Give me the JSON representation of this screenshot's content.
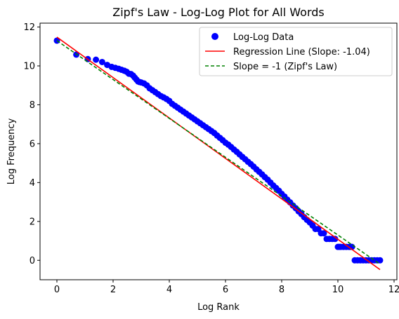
{
  "chart_data": {
    "type": "scatter",
    "title": "Zipf's Law - Log-Log Plot for All Words",
    "xlabel": "Log Rank",
    "ylabel": "Log Frequency",
    "xlim": [
      -0.6,
      12.1
    ],
    "ylim": [
      -1.0,
      12.2
    ],
    "xticks": [
      0,
      2,
      4,
      6,
      8,
      10,
      12
    ],
    "yticks": [
      0,
      2,
      4,
      6,
      8,
      10,
      12
    ],
    "grid": false,
    "legend_position": "top-right",
    "series": [
      {
        "name": "Log-Log Data",
        "kind": "scatter",
        "color": "#0000ff",
        "points": [
          [
            0,
            11.3
          ],
          [
            0.69,
            10.58
          ],
          [
            1.1,
            10.35
          ],
          [
            1.39,
            10.32
          ],
          [
            1.61,
            10.2
          ],
          [
            1.79,
            10.05
          ],
          [
            1.95,
            9.95
          ],
          [
            2.08,
            9.9
          ],
          [
            2.2,
            9.85
          ],
          [
            2.3,
            9.8
          ],
          [
            2.4,
            9.75
          ],
          [
            2.48,
            9.7
          ],
          [
            2.56,
            9.6
          ],
          [
            2.64,
            9.58
          ],
          [
            2.71,
            9.5
          ],
          [
            2.77,
            9.4
          ],
          [
            2.83,
            9.3
          ],
          [
            2.89,
            9.2
          ],
          [
            2.94,
            9.17
          ],
          [
            3.0,
            9.15
          ],
          [
            3.1,
            9.1
          ],
          [
            3.2,
            9.0
          ],
          [
            3.3,
            8.85
          ],
          [
            3.4,
            8.75
          ],
          [
            3.5,
            8.65
          ],
          [
            3.6,
            8.55
          ],
          [
            3.7,
            8.45
          ],
          [
            3.8,
            8.38
          ],
          [
            3.9,
            8.3
          ],
          [
            4.0,
            8.2
          ],
          [
            4.1,
            8.05
          ],
          [
            4.2,
            7.95
          ],
          [
            4.3,
            7.85
          ],
          [
            4.4,
            7.75
          ],
          [
            4.5,
            7.65
          ],
          [
            4.6,
            7.55
          ],
          [
            4.7,
            7.45
          ],
          [
            4.8,
            7.35
          ],
          [
            4.9,
            7.25
          ],
          [
            5.0,
            7.15
          ],
          [
            5.1,
            7.05
          ],
          [
            5.2,
            6.95
          ],
          [
            5.3,
            6.85
          ],
          [
            5.4,
            6.75
          ],
          [
            5.5,
            6.65
          ],
          [
            5.6,
            6.55
          ],
          [
            5.7,
            6.42
          ],
          [
            5.8,
            6.3
          ],
          [
            5.9,
            6.18
          ],
          [
            6.0,
            6.05
          ],
          [
            6.1,
            5.95
          ],
          [
            6.2,
            5.83
          ],
          [
            6.3,
            5.7
          ],
          [
            6.4,
            5.58
          ],
          [
            6.5,
            5.45
          ],
          [
            6.6,
            5.32
          ],
          [
            6.7,
            5.2
          ],
          [
            6.8,
            5.07
          ],
          [
            6.9,
            4.95
          ],
          [
            7.0,
            4.82
          ],
          [
            7.1,
            4.68
          ],
          [
            7.2,
            4.55
          ],
          [
            7.3,
            4.42
          ],
          [
            7.4,
            4.28
          ],
          [
            7.5,
            4.15
          ],
          [
            7.6,
            4.0
          ],
          [
            7.7,
            3.85
          ],
          [
            7.8,
            3.72
          ],
          [
            7.9,
            3.58
          ],
          [
            8.0,
            3.42
          ],
          [
            8.1,
            3.28
          ],
          [
            8.2,
            3.12
          ],
          [
            8.3,
            2.98
          ],
          [
            8.4,
            2.82
          ],
          [
            8.5,
            2.68
          ],
          [
            8.6,
            2.52
          ],
          [
            8.7,
            2.38
          ],
          [
            8.8,
            2.22
          ],
          [
            8.9,
            2.08
          ],
          [
            9.0,
            1.95
          ],
          [
            9.1,
            1.79
          ],
          [
            9.2,
            1.61
          ],
          [
            9.3,
            1.61
          ],
          [
            9.4,
            1.39
          ],
          [
            9.5,
            1.39
          ],
          [
            9.6,
            1.1
          ],
          [
            9.7,
            1.1
          ],
          [
            9.8,
            1.1
          ],
          [
            9.9,
            1.1
          ],
          [
            10.0,
            0.69
          ],
          [
            10.05,
            0.69
          ],
          [
            10.1,
            0.69
          ],
          [
            10.2,
            0.69
          ],
          [
            10.3,
            0.69
          ],
          [
            10.4,
            0.69
          ],
          [
            10.45,
            0.69
          ],
          [
            10.5,
            0.69
          ],
          [
            10.6,
            0.0
          ],
          [
            10.7,
            0.0
          ],
          [
            10.8,
            0.0
          ],
          [
            10.9,
            0.0
          ],
          [
            11.0,
            0.0
          ],
          [
            11.1,
            0.0
          ],
          [
            11.2,
            0.0
          ],
          [
            11.3,
            0.0
          ],
          [
            11.4,
            0.0
          ],
          [
            11.5,
            0.0
          ]
        ]
      },
      {
        "name": "Regression Line (Slope: -1.04)",
        "kind": "line",
        "color": "#ff0000",
        "dash": "solid",
        "points": [
          [
            0,
            11.48
          ],
          [
            11.5,
            -0.48
          ]
        ]
      },
      {
        "name": "Slope = -1 (Zipf's Law)",
        "kind": "line",
        "color": "#008000",
        "dash": "dashed",
        "points": [
          [
            0,
            11.3
          ],
          [
            11.5,
            -0.2
          ]
        ]
      }
    ]
  }
}
